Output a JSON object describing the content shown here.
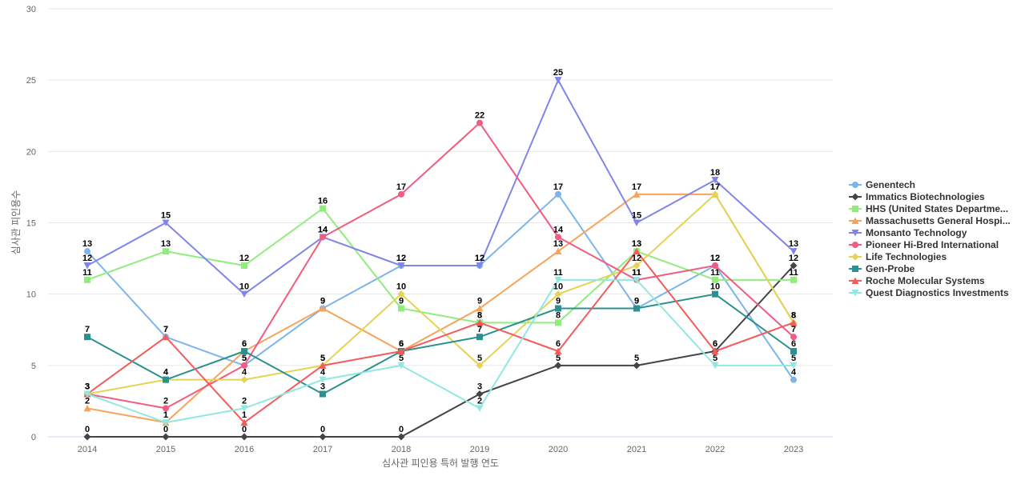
{
  "chart_data": {
    "type": "line",
    "title": "",
    "xlabel": "심사관 피인용 특허 발행 연도",
    "ylabel": "심사관 피인용수",
    "ylim": [
      0,
      30
    ],
    "yticks": [
      0,
      5,
      10,
      15,
      20,
      25,
      30
    ],
    "grid": true,
    "legend_position": "right",
    "x": [
      "2014",
      "2015",
      "2016",
      "2017",
      "2018",
      "2019",
      "2020",
      "2021",
      "2022",
      "2023"
    ],
    "series": [
      {
        "name": "Genentech",
        "color": "#7cb5ec",
        "marker": "circle",
        "values": [
          13,
          7,
          5,
          9,
          12,
          12,
          17,
          9,
          12,
          4
        ]
      },
      {
        "name": "Immatics Biotechnologies",
        "color": "#434348",
        "marker": "diamond",
        "values": [
          0,
          0,
          0,
          0,
          0,
          3,
          5,
          5,
          6,
          12
        ]
      },
      {
        "name": "HHS (United States Departme...",
        "color": "#90ed7d",
        "marker": "square",
        "values": [
          11,
          13,
          12,
          16,
          9,
          8,
          8,
          13,
          11,
          11
        ]
      },
      {
        "name": "Massachusetts General Hospi...",
        "color": "#f7a35c",
        "marker": "triangle",
        "values": [
          2,
          1,
          6,
          9,
          6,
          9,
          13,
          17,
          17,
          8
        ]
      },
      {
        "name": "Monsanto Technology",
        "color": "#8085e9",
        "marker": "triangle-down",
        "values": [
          12,
          15,
          10,
          14,
          12,
          12,
          25,
          15,
          18,
          13
        ]
      },
      {
        "name": "Pioneer Hi-Bred International",
        "color": "#f15c80",
        "marker": "circle",
        "values": [
          3,
          2,
          5,
          14,
          17,
          22,
          14,
          11,
          12,
          7
        ]
      },
      {
        "name": "Life Technologies",
        "color": "#e4d354",
        "marker": "diamond",
        "values": [
          3,
          4,
          4,
          5,
          10,
          5,
          10,
          12,
          17,
          8
        ]
      },
      {
        "name": "Gen-Probe",
        "color": "#2b908f",
        "marker": "square",
        "values": [
          7,
          4,
          6,
          3,
          6,
          7,
          9,
          9,
          10,
          6
        ]
      },
      {
        "name": "Roche Molecular Systems",
        "color": "#f45b5b",
        "marker": "triangle",
        "values": [
          3,
          7,
          1,
          5,
          6,
          8,
          6,
          13,
          6,
          8
        ]
      },
      {
        "name": "Quest Diagnostics Investments",
        "color": "#91e8e1",
        "marker": "triangle-down",
        "values": [
          3,
          1,
          2,
          4,
          5,
          2,
          11,
          11,
          5,
          5
        ]
      }
    ]
  }
}
